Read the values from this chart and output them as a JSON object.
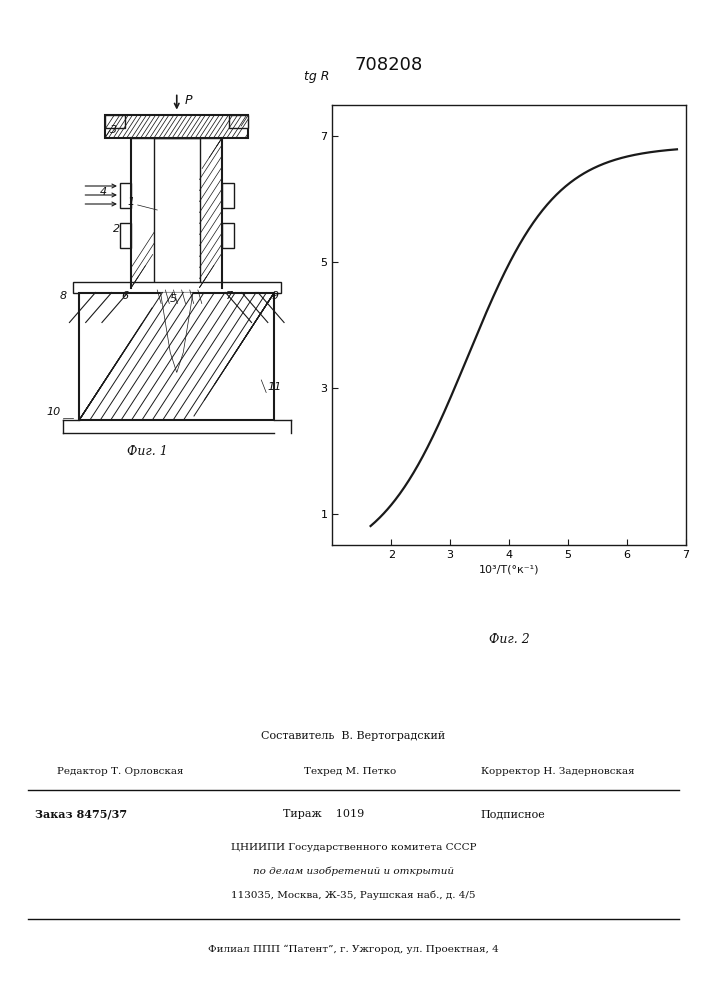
{
  "patent_number": "708208",
  "fig1_label": "Фиг. 1",
  "fig2_label": "Фиг. 2",
  "graph_xlabel": "10³/T(°к⁻¹)",
  "graph_ylabel": "tg R",
  "graph_xlim": [
    1,
    7
  ],
  "graph_ylim": [
    0.5,
    7.5
  ],
  "graph_xticks": [
    2,
    3,
    4,
    5,
    6,
    7
  ],
  "graph_yticks": [
    1,
    3,
    5,
    7
  ],
  "background_color": "#f5f3ef",
  "line_color": "#1a1a1a",
  "text_color": "#111111",
  "footer_line1": "Составитель  В. Вертоградский",
  "footer_line2_left": "Редактор Т. Орловская",
  "footer_line2_mid": "Техред М. Петко",
  "footer_line2_right": "Корректор Н. Задерновская",
  "footer_line3_left": "Заказ 8475/37",
  "footer_line3_mid": "Тираж    1019",
  "footer_line3_right": "Подписное",
  "footer_line4": "ЦНИИПИ Государственного комитета СССР",
  "footer_line5": "по делам изобретений и открытий",
  "footer_line6": "113035, Москва, Ж-35, Раушская наб., д. 4/5",
  "footer_line7": "Филиал ППП “Патент”, г. Ужгород, ул. Проектная, 4"
}
